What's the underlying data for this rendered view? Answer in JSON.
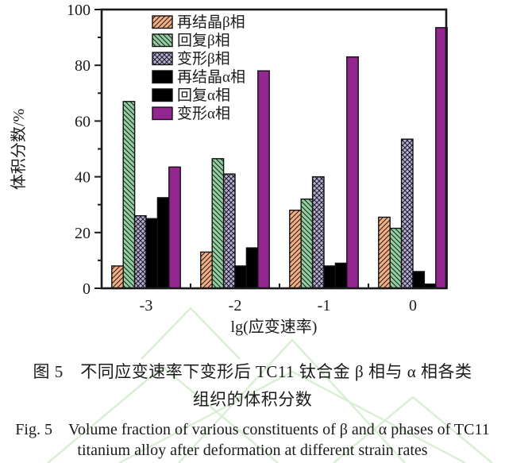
{
  "chart_data": {
    "type": "bar",
    "title": "",
    "categories": [
      "-3",
      "-2",
      "-1",
      "0"
    ],
    "series": [
      {
        "name": "再结晶β相",
        "values": [
          8,
          13,
          28,
          25.5
        ],
        "color": "#F5AF85",
        "hatch": "diag-up"
      },
      {
        "name": "回复β相",
        "values": [
          67,
          46.5,
          32,
          21.5
        ],
        "color": "#92CFA0",
        "hatch": "diag-down"
      },
      {
        "name": "变形β相",
        "values": [
          26,
          41,
          40,
          53.5
        ],
        "color": "#B9AEDA",
        "hatch": "cross"
      },
      {
        "name": "再结晶α相",
        "values": [
          25,
          8,
          8,
          6
        ],
        "color": "#000000",
        "hatch": "none"
      },
      {
        "name": "回复α相",
        "values": [
          32.5,
          14.5,
          9,
          1.5
        ],
        "color": "#000000",
        "hatch": "none"
      },
      {
        "name": "变形α相",
        "values": [
          43.5,
          78,
          83,
          93.5
        ],
        "color": "#94278F",
        "hatch": "none"
      }
    ],
    "xlabel": "lg(应变速率)",
    "ylabel": "体积分数/%",
    "ylim": [
      0,
      100
    ],
    "yticks": [
      0,
      20,
      40,
      60,
      80,
      100
    ],
    "yminor_step": 10,
    "legend_position": "top-left-inside",
    "grid": false,
    "axis_color": "#1a1a1a",
    "watermark_color": "#cdeac6"
  },
  "caption": {
    "zh_line1": "图 5　不同应变速率下变形后 TC11 钛合金 β 相与 α 相各类",
    "zh_line2": "组织的体积分数",
    "en_line1": "Fig. 5　Volume fraction of various constituents of β and α phases of TC11",
    "en_line2": "titanium alloy after deformation at different strain rates"
  }
}
